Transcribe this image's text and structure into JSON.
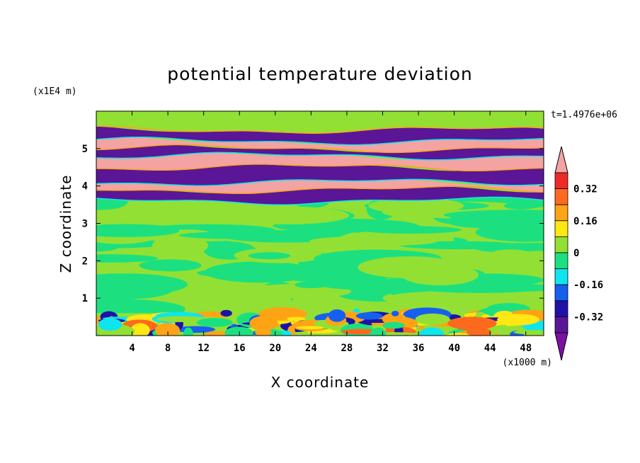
{
  "chart_data": {
    "type": "heatmap",
    "title": "potential temperature deviation",
    "xlabel": "X coordinate",
    "ylabel": "Z coordinate",
    "x_unit_label": "(x1000 m)",
    "y_unit_label": "(x1E4 m)",
    "time_label": "t=1.4976e+06",
    "xlim": [
      0,
      50
    ],
    "ylim": [
      0,
      6
    ],
    "x_ticks": [
      4,
      8,
      12,
      16,
      20,
      24,
      28,
      32,
      36,
      40,
      44,
      48
    ],
    "y_ticks": [
      1,
      2,
      3,
      4,
      5
    ],
    "colorbar": {
      "levels": [
        -0.4,
        -0.32,
        -0.24,
        -0.16,
        -0.08,
        0,
        0.08,
        0.16,
        0.24,
        0.32,
        0.4
      ],
      "labels": [
        "0.32",
        "0.16",
        "0",
        "-0.16",
        "-0.32"
      ],
      "label_values": [
        0.32,
        0.16,
        0,
        -0.16,
        -0.32
      ],
      "colors_top_to_bottom": [
        "#f4a3a3",
        "#ee2a26",
        "#fd6a1d",
        "#fea414",
        "#ffe713",
        "#92e034",
        "#1ce07f",
        "#0de6ee",
        "#1660f0",
        "#1e13a8",
        "#5a1697",
        "#7c11a4"
      ],
      "extend": "both"
    },
    "bands": [
      {
        "z_range": [
          0.0,
          0.6
        ],
        "pattern": "mixed noisy field, magnitudes up to about +0.24 and down to -0.32"
      },
      {
        "z_range": [
          0.6,
          3.6
        ],
        "pattern": "weak noise between -0.08 and +0.08"
      },
      {
        "z_range": [
          3.6,
          3.9
        ],
        "value": -0.4
      },
      {
        "z_range": [
          3.9,
          4.1
        ],
        "value": 0.4
      },
      {
        "z_range": [
          4.1,
          4.5
        ],
        "value": -0.4
      },
      {
        "z_range": [
          4.5,
          4.8
        ],
        "value": 0.4
      },
      {
        "z_range": [
          4.8,
          5.0
        ],
        "value": -0.4
      },
      {
        "z_range": [
          5.0,
          5.2
        ],
        "value": 0.4
      },
      {
        "z_range": [
          5.2,
          5.5
        ],
        "value": -0.4
      },
      {
        "z_range": [
          5.5,
          6.0
        ],
        "value": 0.05
      }
    ]
  }
}
